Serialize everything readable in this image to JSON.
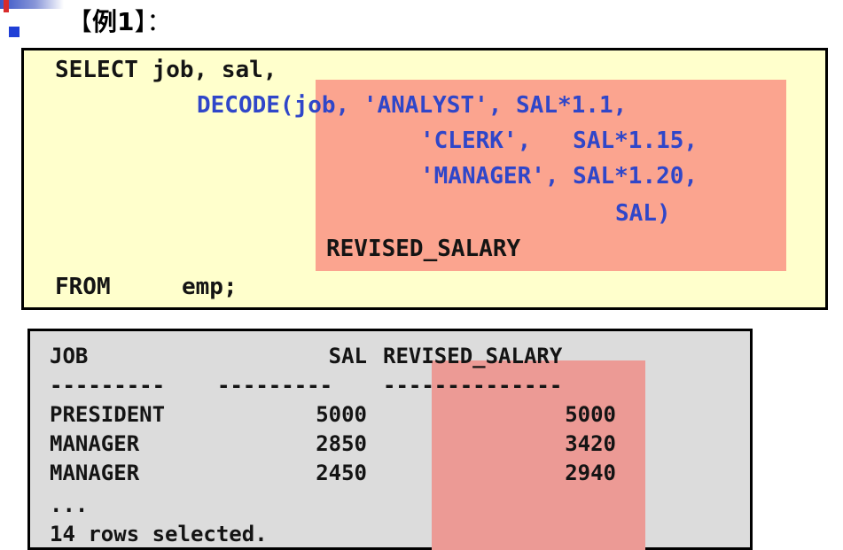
{
  "heading": {
    "open_bracket": "【",
    "label": "例1",
    "close_bracket": "】：",
    "bullet_icon": "square-bullet-icon"
  },
  "code": {
    "line1": "SELECT job, sal,",
    "decode_kw": "DECODE",
    "line2_rest": "(job, 'ANALYST', SAL*1.1,",
    "line3": "'CLERK',   SAL*1.15,",
    "line4": "'MANAGER', SAL*1.20,",
    "line5": "SAL)",
    "alias": "REVISED_SALARY",
    "from_kw": "FROM",
    "from_table": "emp;"
  },
  "result": {
    "headers": [
      "JOB",
      "SAL",
      "REVISED_SALARY"
    ],
    "separators": [
      "---------",
      "---------",
      "--------------"
    ],
    "rows": [
      [
        "PRESIDENT",
        "5000",
        "5000"
      ],
      [
        "MANAGER",
        "2850",
        "3420"
      ],
      [
        "MANAGER",
        "2450",
        "2940"
      ]
    ],
    "ellipsis": "...",
    "footer": "14 rows selected."
  },
  "colors": {
    "code_background": "#ffffcc",
    "code_highlight": "#fba48f",
    "keyword_blue": "#2f46c9",
    "result_background": "#dcdcdc",
    "result_highlight": "#ec9a95"
  }
}
